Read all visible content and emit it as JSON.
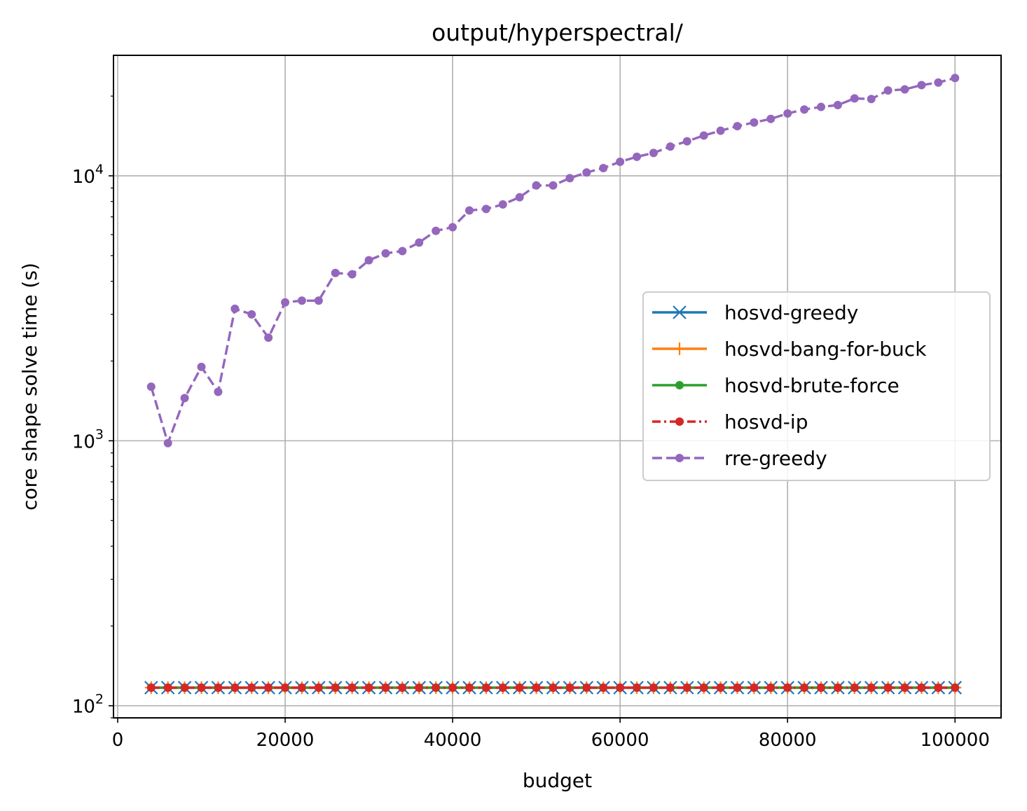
{
  "chart_data": {
    "type": "line",
    "title": "output/hyperspectral/",
    "xlabel": "budget",
    "ylabel": "core shape solve time (s)",
    "xscale": "linear",
    "yscale": "log",
    "xlim": [
      -500,
      105500
    ],
    "ylim": [
      90,
      28500
    ],
    "xticks": [
      0,
      20000,
      40000,
      60000,
      80000,
      100000
    ],
    "xtick_labels": [
      "0",
      "20000",
      "40000",
      "60000",
      "80000",
      "100000"
    ],
    "yticks": [
      100,
      1000,
      10000
    ],
    "ytick_labels": [
      {
        "base": "10",
        "exp": "2"
      },
      {
        "base": "10",
        "exp": "3"
      },
      {
        "base": "10",
        "exp": "4"
      }
    ],
    "grid": true,
    "legend_position": "center-right",
    "x": [
      4000,
      6000,
      8000,
      10000,
      12000,
      14000,
      16000,
      18000,
      20000,
      22000,
      24000,
      26000,
      28000,
      30000,
      32000,
      34000,
      36000,
      38000,
      40000,
      42000,
      44000,
      46000,
      48000,
      50000,
      52000,
      54000,
      56000,
      58000,
      60000,
      62000,
      64000,
      66000,
      68000,
      70000,
      72000,
      74000,
      76000,
      78000,
      80000,
      82000,
      84000,
      86000,
      88000,
      90000,
      92000,
      94000,
      96000,
      98000,
      100000
    ],
    "series": [
      {
        "name": "hosvd-greedy",
        "color": "#1f77b4",
        "marker": "x",
        "dash": "solid",
        "values": [
          117,
          117,
          117,
          117,
          117,
          117,
          117,
          117,
          117,
          117,
          117,
          117,
          117,
          117,
          117,
          117,
          117,
          117,
          117,
          117,
          117,
          117,
          117,
          117,
          117,
          117,
          117,
          117,
          117,
          117,
          117,
          117,
          117,
          117,
          117,
          117,
          117,
          117,
          117,
          117,
          117,
          117,
          117,
          117,
          117,
          117,
          117,
          117,
          117
        ]
      },
      {
        "name": "hosvd-bang-for-buck",
        "color": "#ff7f0e",
        "marker": "plus",
        "dash": "solid",
        "values": [
          117,
          117,
          117,
          117,
          117,
          117,
          117,
          117,
          117,
          117,
          117,
          117,
          117,
          117,
          117,
          117,
          117,
          117,
          117,
          117,
          117,
          117,
          117,
          117,
          117,
          117,
          117,
          117,
          117,
          117,
          117,
          117,
          117,
          117,
          117,
          117,
          117,
          117,
          117,
          117,
          117,
          117,
          117,
          117,
          117,
          117,
          117,
          117,
          117
        ]
      },
      {
        "name": "hosvd-brute-force",
        "color": "#2ca02c",
        "marker": "dot",
        "dash": "solid",
        "values": [
          117,
          117,
          117,
          117,
          117,
          117,
          117,
          117,
          117,
          117,
          117,
          117,
          117,
          117,
          117,
          117,
          117,
          117,
          117,
          117,
          117,
          117,
          117,
          117,
          117,
          117,
          117,
          117,
          117,
          117,
          117,
          117,
          117,
          117,
          117,
          117,
          117,
          117,
          117,
          117,
          117,
          117,
          117,
          117,
          117,
          117,
          117,
          117,
          117
        ]
      },
      {
        "name": "hosvd-ip",
        "color": "#d62728",
        "marker": "dot",
        "dash": "dashdot",
        "values": [
          117,
          117,
          117,
          117,
          117,
          117,
          117,
          117,
          117,
          117,
          117,
          117,
          117,
          117,
          117,
          117,
          117,
          117,
          117,
          117,
          117,
          117,
          117,
          117,
          117,
          117,
          117,
          117,
          117,
          117,
          117,
          117,
          117,
          117,
          117,
          117,
          117,
          117,
          117,
          117,
          117,
          117,
          117,
          117,
          117,
          117,
          117,
          117,
          117
        ]
      },
      {
        "name": "rre-greedy",
        "color": "#9467bd",
        "marker": "dot",
        "dash": "dashed",
        "values": [
          1600,
          980,
          1450,
          1900,
          1530,
          3150,
          3000,
          2450,
          3330,
          3380,
          3380,
          4300,
          4250,
          4800,
          5100,
          5200,
          5600,
          6200,
          6400,
          7400,
          7500,
          7800,
          8300,
          9200,
          9200,
          9800,
          10300,
          10700,
          11300,
          11800,
          12200,
          12900,
          13500,
          14200,
          14800,
          15400,
          15900,
          16400,
          17200,
          17800,
          18200,
          18500,
          19600,
          19500,
          21000,
          21200,
          22000,
          22500,
          23400
        ]
      }
    ]
  }
}
